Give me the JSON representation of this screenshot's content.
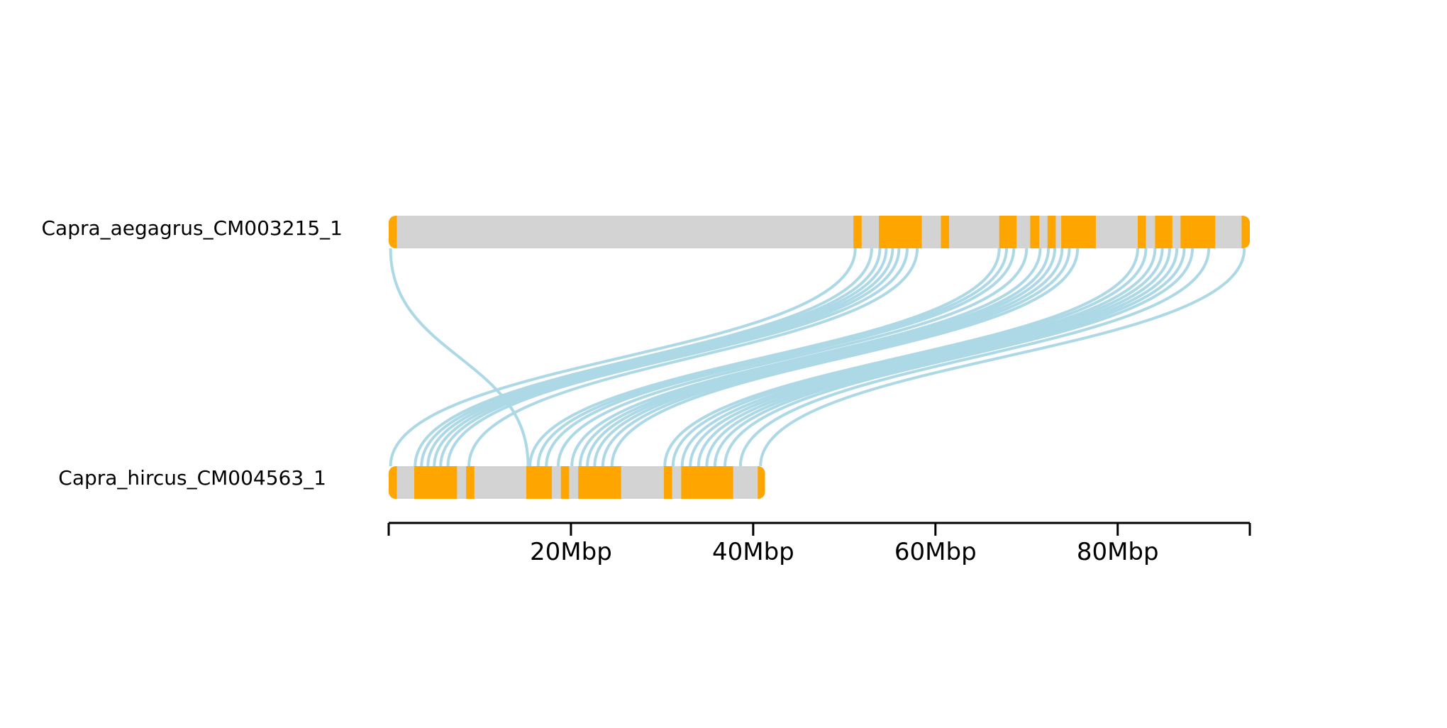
{
  "colors": {
    "chromosome": "#d3d3d3",
    "syntenic_block": "#ffa500",
    "link": "#add8e6",
    "axis": "#000000"
  },
  "chart_data": {
    "type": "synteny",
    "axis": {
      "unit": "Mbp",
      "range": [
        0,
        94.5
      ],
      "ticks": [
        0,
        20,
        40,
        60,
        80,
        94.5
      ],
      "tick_labels": [
        "",
        "20Mbp",
        "40Mbp",
        "60Mbp",
        "80Mbp",
        ""
      ]
    },
    "chromosomes": [
      {
        "name": "Capra_aegagrus_CM003215_1",
        "length": 94.5,
        "blocks": [
          [
            0,
            0.9
          ],
          [
            51,
            51.9
          ],
          [
            53.8,
            58.5
          ],
          [
            60.6,
            61.5
          ],
          [
            67,
            68.9
          ],
          [
            70.4,
            71.4
          ],
          [
            72.3,
            73.2
          ],
          [
            73.8,
            77.6
          ],
          [
            82.2,
            83.1
          ],
          [
            84.1,
            86.0
          ],
          [
            86.9,
            90.7
          ],
          [
            93.6,
            94.5
          ]
        ]
      },
      {
        "name": "Capra_hircus_CM004563_1",
        "length": 41.3,
        "blocks": [
          [
            0,
            0.9
          ],
          [
            2.8,
            7.5
          ],
          [
            8.5,
            9.4
          ],
          [
            15.1,
            17.9
          ],
          [
            18.9,
            19.8
          ],
          [
            20.8,
            25.5
          ],
          [
            30.2,
            31.1
          ],
          [
            32.1,
            37.8
          ],
          [
            40.5,
            41.3
          ]
        ]
      }
    ],
    "links": [
      {
        "top": 0.2,
        "bottom": 15.3
      },
      {
        "top": 51.2,
        "bottom": 0.2
      },
      {
        "top": 53.0,
        "bottom": 2.9
      },
      {
        "top": 53.9,
        "bottom": 3.6
      },
      {
        "top": 54.6,
        "bottom": 4.3
      },
      {
        "top": 55.3,
        "bottom": 5.0
      },
      {
        "top": 56.0,
        "bottom": 5.7
      },
      {
        "top": 56.9,
        "bottom": 6.5
      },
      {
        "top": 58.0,
        "bottom": 8.8
      },
      {
        "top": 67.0,
        "bottom": 15.5
      },
      {
        "top": 67.8,
        "bottom": 16.4
      },
      {
        "top": 68.6,
        "bottom": 17.3
      },
      {
        "top": 70.0,
        "bottom": 18.6
      },
      {
        "top": 71.5,
        "bottom": 20.1
      },
      {
        "top": 72.4,
        "bottom": 21.0
      },
      {
        "top": 73.1,
        "bottom": 21.8
      },
      {
        "top": 73.9,
        "bottom": 22.6
      },
      {
        "top": 74.7,
        "bottom": 23.5
      },
      {
        "top": 75.6,
        "bottom": 24.5
      },
      {
        "top": 82.2,
        "bottom": 30.3
      },
      {
        "top": 83.1,
        "bottom": 31.2
      },
      {
        "top": 84.1,
        "bottom": 32.2
      },
      {
        "top": 84.9,
        "bottom": 33.1
      },
      {
        "top": 85.7,
        "bottom": 34.0
      },
      {
        "top": 86.5,
        "bottom": 34.9
      },
      {
        "top": 87.3,
        "bottom": 35.8
      },
      {
        "top": 88.2,
        "bottom": 36.9
      },
      {
        "top": 90.0,
        "bottom": 38.6
      },
      {
        "top": 93.9,
        "bottom": 40.8
      }
    ]
  }
}
